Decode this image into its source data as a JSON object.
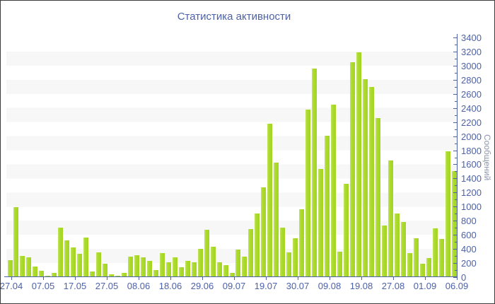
{
  "chart_data": {
    "type": "bar",
    "title": "Статистика активности",
    "ylabel": "Сообщений",
    "xlabel": "",
    "ylim": [
      0,
      3400
    ],
    "y_tick_step": 200,
    "y_minor_tick_step": 100,
    "y_ticks": [
      0,
      200,
      400,
      600,
      800,
      1000,
      1200,
      1400,
      1600,
      1800,
      2000,
      2200,
      2400,
      2600,
      2800,
      3000,
      3200,
      3400
    ],
    "x_tick_labels": [
      "27.04",
      "07.05",
      "17.05",
      "27.05",
      "08.06",
      "18.06",
      "29.06",
      "09.07",
      "19.07",
      "30.07",
      "09.08",
      "19.08",
      "27.08",
      "01.09",
      "06.09"
    ],
    "values": [
      240,
      990,
      300,
      285,
      150,
      95,
      25,
      60,
      700,
      520,
      420,
      330,
      560,
      85,
      350,
      190,
      40,
      25,
      65,
      290,
      310,
      280,
      230,
      100,
      340,
      210,
      280,
      140,
      230,
      210,
      400,
      670,
      430,
      210,
      170,
      60,
      390,
      290,
      680,
      900,
      1270,
      2180,
      1620,
      700,
      350,
      550,
      960,
      2380,
      2960,
      1530,
      2010,
      2450,
      360,
      1320,
      3050,
      3190,
      2810,
      2700,
      2260,
      730,
      1660,
      900,
      780,
      340,
      550,
      190,
      270,
      690,
      540,
      1790,
      1500
    ],
    "grid": "horizontal-bands-alternating-200",
    "legend": "none",
    "colors": {
      "bar": "#a9d827",
      "bar_highlight": "#c3e45f",
      "axis_text": "#4d62a8",
      "axis_line": "#4d62a8",
      "ylabel_text": "#8e96ad",
      "band": "#f7f7f7",
      "background": "#ffffff",
      "border": "#3c3c3c"
    }
  }
}
